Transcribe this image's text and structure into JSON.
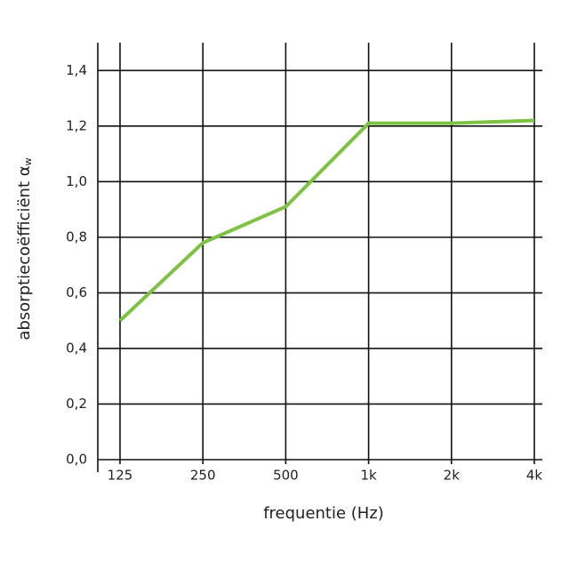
{
  "chart_data": {
    "type": "line",
    "x_label": "frequentie (Hz)",
    "y_label": "absorptiecoëfficiënt α",
    "y_label_subscript": "w",
    "categories": [
      "125",
      "250",
      "500",
      "1k",
      "2k",
      "4k"
    ],
    "series": [
      {
        "name": "αw",
        "color": "#7dc242",
        "values": [
          0.5,
          0.78,
          0.91,
          1.21,
          1.21,
          1.22
        ]
      }
    ],
    "ylim": [
      0,
      1.5
    ],
    "yticks": [
      {
        "value": 0,
        "label": "0,0"
      },
      {
        "value": 0.2,
        "label": "0,2"
      },
      {
        "value": 0.4,
        "label": "0,4"
      },
      {
        "value": 0.6,
        "label": "0,6"
      },
      {
        "value": 0.8,
        "label": "0,8"
      },
      {
        "value": 1.0,
        "label": "1,0"
      },
      {
        "value": 1.2,
        "label": "1,2"
      },
      {
        "value": 1.4,
        "label": "1,4"
      }
    ],
    "grid": true
  }
}
